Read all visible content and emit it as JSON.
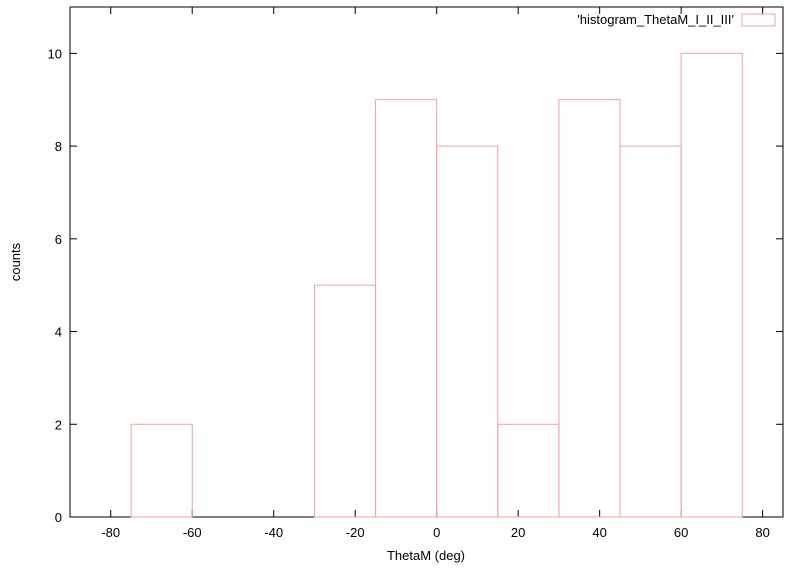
{
  "chart_data": {
    "type": "bar",
    "xlabel": "ThetaM (deg)",
    "ylabel": "counts",
    "xlim": [
      -90,
      85
    ],
    "ylim": [
      0,
      11
    ],
    "xticks": [
      -80,
      -60,
      -40,
      -20,
      0,
      20,
      40,
      60,
      80
    ],
    "yticks": [
      0,
      2,
      4,
      6,
      8,
      10
    ],
    "grid": false,
    "legend_position": "top-right",
    "series": [
      {
        "name": "'histogram_ThetaM_I_II_III'",
        "color": "#f4a0a0",
        "bins": [
          {
            "start": -75,
            "end": -60,
            "value": 2
          },
          {
            "start": -30,
            "end": -15,
            "value": 5
          },
          {
            "start": -15,
            "end": 0,
            "value": 9
          },
          {
            "start": 0,
            "end": 15,
            "value": 8
          },
          {
            "start": 15,
            "end": 30,
            "value": 2
          },
          {
            "start": 30,
            "end": 45,
            "value": 9
          },
          {
            "start": 45,
            "end": 60,
            "value": 8
          },
          {
            "start": 60,
            "end": 75,
            "value": 10
          }
        ]
      }
    ]
  }
}
